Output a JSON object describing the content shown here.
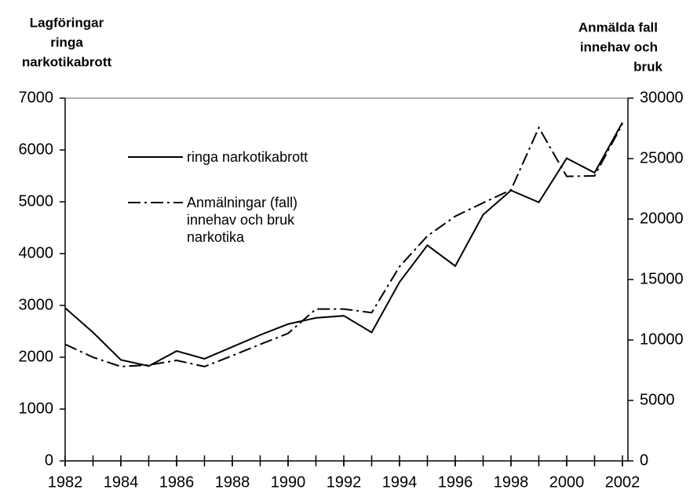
{
  "chart_data": {
    "type": "line",
    "ylabel_lines": [
      "Lagföringar",
      "ringa",
      "narkotikabrott"
    ],
    "y2label_lines": [
      "Anmälda fall",
      "innehav och",
      "bruk"
    ],
    "x": [
      1982,
      1983,
      1984,
      1985,
      1986,
      1987,
      1988,
      1989,
      1990,
      1991,
      1992,
      1993,
      1994,
      1995,
      1996,
      1997,
      1998,
      1999,
      2000,
      2001,
      2002
    ],
    "xlim": [
      1982,
      2002
    ],
    "xticks": [
      1982,
      1984,
      1986,
      1988,
      1990,
      1992,
      1994,
      1996,
      1998,
      2000,
      2002
    ],
    "ylim": [
      0,
      7000
    ],
    "yticks": [
      0,
      1000,
      2000,
      3000,
      4000,
      5000,
      6000,
      7000
    ],
    "y2lim": [
      0,
      30000
    ],
    "y2ticks": [
      0,
      5000,
      10000,
      15000,
      20000,
      25000,
      30000
    ],
    "series": [
      {
        "name": "ringa narkotikabrott",
        "color": "#000000",
        "dash": "solid",
        "values": [
          2950,
          2480,
          1950,
          1830,
          2120,
          1970,
          2200,
          2430,
          2640,
          2760,
          2800,
          2480,
          3450,
          4160,
          3760,
          4750,
          5220,
          4990,
          5840,
          5560,
          6530
        ]
      },
      {
        "name": "Anmälningar (fall) innehav och bruk narkotika",
        "color": "#000000",
        "dash": "dashdot",
        "axis": "y2",
        "values": [
          9640,
          8570,
          7800,
          7930,
          8310,
          7800,
          8700,
          9640,
          10540,
          12560,
          12560,
          12260,
          16070,
          18600,
          20230,
          21340,
          22410,
          27560,
          23530,
          23570,
          27860
        ]
      }
    ]
  }
}
